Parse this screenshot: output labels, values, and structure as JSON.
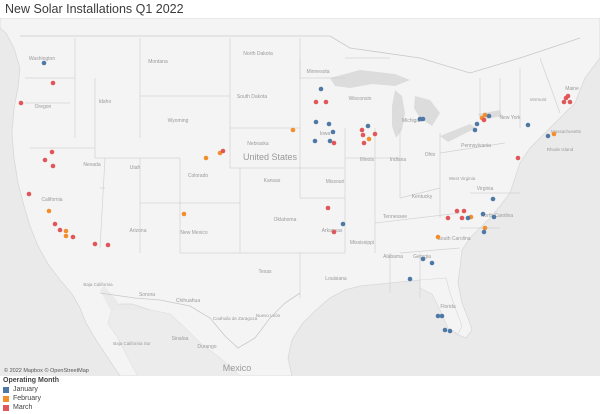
{
  "title": "New Solar Installations Q1 2022",
  "credit": "© 2022 Mapbox © OpenStreetMap",
  "legend": {
    "title": "Operating Month",
    "items": [
      {
        "label": "January",
        "color": "#4e79a7"
      },
      {
        "label": "February",
        "color": "#f28e2b"
      },
      {
        "label": "March",
        "color": "#e15759"
      }
    ]
  },
  "map_labels": {
    "united_states": "United States",
    "mexico": "Mexico",
    "states": [
      "Washington",
      "Oregon",
      "Idaho",
      "Montana",
      "North Dakota",
      "South Dakota",
      "Wyoming",
      "Nebraska",
      "Minnesota",
      "Wisconsin",
      "Michigan",
      "Iowa",
      "Illinois",
      "Indiana",
      "Ohio",
      "Pennsylvania",
      "New York",
      "Vermont",
      "Maine",
      "Massachusetts",
      "Rhode Island",
      "West Virginia",
      "Virginia",
      "Kentucky",
      "Tennessee",
      "North Carolina",
      "South Carolina",
      "Georgia",
      "Alabama",
      "Mississippi",
      "Arkansas",
      "Louisiana",
      "Oklahoma",
      "Kansas",
      "Missouri",
      "Texas",
      "New Mexico",
      "Arizona",
      "Colorado",
      "Utah",
      "Nevada",
      "California",
      "Florida",
      "Baja California",
      "Baja California Sur",
      "Sonora",
      "Chihuahua",
      "Sinaloa",
      "Durango",
      "Coahuila de Zaragoza",
      "Nuevo León"
    ]
  }
}
